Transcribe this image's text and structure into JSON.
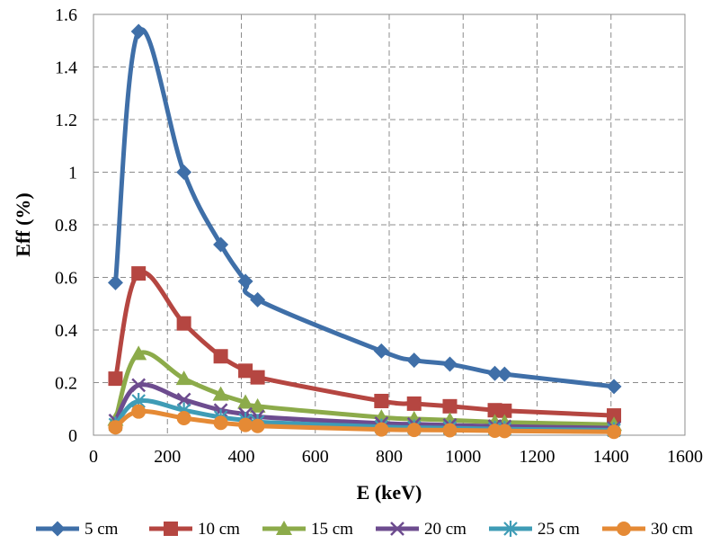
{
  "chart_data": {
    "type": "line",
    "title": "",
    "xlabel": "E (keV)",
    "ylabel": "Eff (%)",
    "xlim": [
      0,
      1600
    ],
    "ylim": [
      0,
      1.6
    ],
    "xticks": [
      0,
      200,
      400,
      600,
      800,
      1000,
      1200,
      1400,
      1600
    ],
    "yticks": [
      "0",
      "0.2",
      "0.4",
      "0.6",
      "0.8",
      "1",
      "1.2",
      "1.4",
      "1.6"
    ],
    "grid": true,
    "legend_position": "bottom",
    "x": [
      59.5,
      122,
      244.7,
      344.3,
      411.1,
      444,
      778.9,
      867.4,
      964.1,
      1085.8,
      1112.1,
      1408
    ],
    "series": [
      {
        "name": "5 cm",
        "color": "#3f6fa8",
        "marker": "diamond",
        "values": [
          0.58,
          1.535,
          1.0,
          0.725,
          0.585,
          0.515,
          0.32,
          0.285,
          0.27,
          0.235,
          0.232,
          0.185
        ]
      },
      {
        "name": "10 cm",
        "color": "#b54641",
        "marker": "square",
        "values": [
          0.215,
          0.615,
          0.425,
          0.3,
          0.245,
          0.22,
          0.13,
          0.12,
          0.11,
          0.095,
          0.093,
          0.075
        ]
      },
      {
        "name": "15 cm",
        "color": "#8cab4a",
        "marker": "triangle",
        "values": [
          0.06,
          0.31,
          0.215,
          0.155,
          0.125,
          0.11,
          0.068,
          0.062,
          0.057,
          0.05,
          0.049,
          0.04
        ]
      },
      {
        "name": "20 cm",
        "color": "#6d4c8f",
        "marker": "x",
        "values": [
          0.055,
          0.19,
          0.135,
          0.095,
          0.08,
          0.07,
          0.045,
          0.042,
          0.038,
          0.034,
          0.033,
          0.027
        ]
      },
      {
        "name": "25 cm",
        "color": "#3f9cb6",
        "marker": "star",
        "values": [
          0.04,
          0.13,
          0.095,
          0.068,
          0.057,
          0.05,
          0.032,
          0.029,
          0.027,
          0.024,
          0.023,
          0.019
        ]
      },
      {
        "name": "30 cm",
        "color": "#e58a35",
        "marker": "circle",
        "values": [
          0.03,
          0.09,
          0.065,
          0.047,
          0.039,
          0.035,
          0.022,
          0.02,
          0.019,
          0.017,
          0.016,
          0.013
        ]
      }
    ]
  }
}
